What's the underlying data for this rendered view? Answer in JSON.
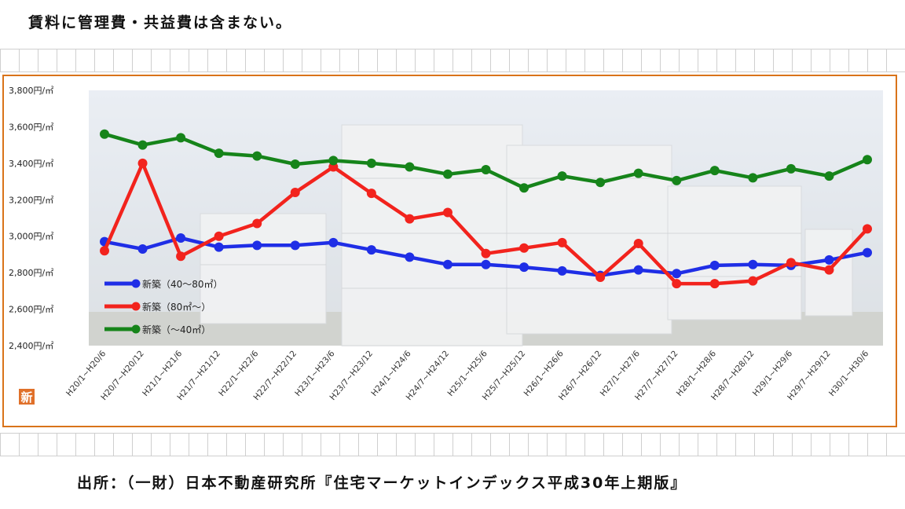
{
  "note": "賃料に管理費・共益費は含まない。",
  "source": "出所：（一財）日本不動産研究所『住宅マーケットインデックス平成30年上期版』",
  "badge": "新",
  "chart_data": {
    "type": "line",
    "ylim": [
      2400,
      3800
    ],
    "yticks": [
      2400,
      2600,
      2800,
      3000,
      3200,
      3400,
      3600,
      3800
    ],
    "ytick_labels": [
      "2,400円/㎡",
      "2,600円/㎡",
      "2,800円/㎡",
      "3,000円/㎡",
      "3,200円/㎡",
      "3,400円/㎡",
      "3,600円/㎡",
      "3,800円/㎡"
    ],
    "categories": [
      "H20/1~H20/6",
      "H20/7~H20/12",
      "H21/1~H21/6",
      "H21/7~H21/12",
      "H22/1~H22/6",
      "H22/7~H22/12",
      "H23/1~H23/6",
      "H23/7~H23/12",
      "H24/1~H24/6",
      "H24/7~H24/12",
      "H25/1~H25/6",
      "H25/7~H25/12",
      "H26/1~H26/6",
      "H26/7~H26/12",
      "H27/1~H27/6",
      "H27/7~H27/12",
      "H28/1~H28/6",
      "H28/7~H28/12",
      "H29/1~H29/6",
      "H29/7~H29/12",
      "H30/1~H30/6"
    ],
    "series": [
      {
        "name": "新築（40～80㎡）",
        "color": "#1f2ee6",
        "values": [
          2970,
          2930,
          2990,
          2940,
          2950,
          2950,
          2965,
          2925,
          2885,
          2845,
          2845,
          2830,
          2810,
          2785,
          2815,
          2795,
          2840,
          2845,
          2840,
          2870,
          2910
        ]
      },
      {
        "name": "新築（80㎡～）",
        "color": "#f2231d",
        "values": [
          2920,
          3400,
          2890,
          3000,
          3070,
          3240,
          3380,
          3235,
          3095,
          3130,
          2905,
          2935,
          2965,
          2775,
          2960,
          2740,
          2740,
          2755,
          2855,
          2815,
          3040
        ]
      },
      {
        "name": "新築（～40㎡）",
        "color": "#16841a",
        "values": [
          3560,
          3500,
          3540,
          3455,
          3440,
          3395,
          3415,
          3400,
          3380,
          3340,
          3365,
          3265,
          3330,
          3295,
          3345,
          3305,
          3360,
          3320,
          3370,
          3330,
          3420
        ]
      }
    ],
    "legend_position": "lower-left",
    "grid": false
  }
}
